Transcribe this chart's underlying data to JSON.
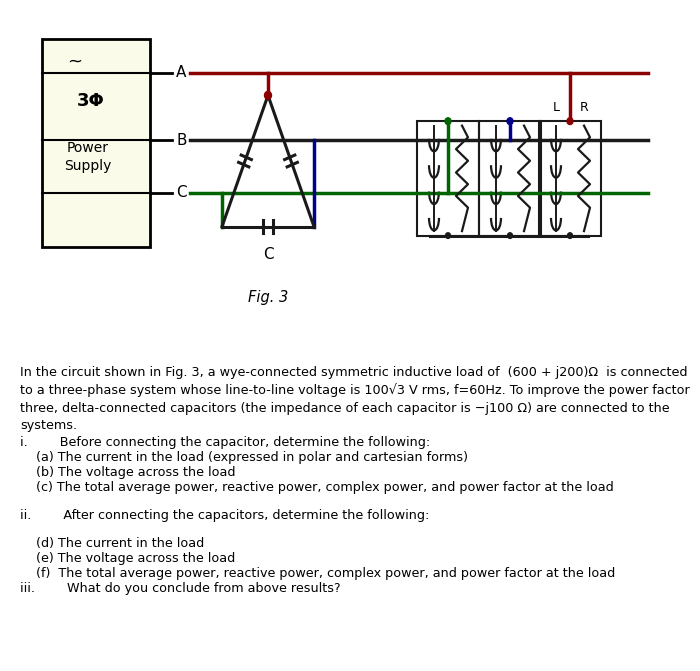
{
  "bg_color_top": "#fafbe8",
  "paragraph_line1": "In the circuit shown in Fig. 3, a wye-connected symmetric inductive load of  (600 + j200)Ω  is connected",
  "paragraph_line2": "to a three-phase system whose line-to-line voltage is 100√3 V rms, f=60Hz. To improve the power factor",
  "paragraph_line3": "three, delta-connected capacitors (the impedance of each capacitor is −j100 Ω) are connected to the",
  "paragraph_line4": "systems.",
  "item_i": "i.        Before connecting the capacitor, determine the following:",
  "item_a": "    (a) The current in the load (expressed in polar and cartesian forms)",
  "item_b": "    (b) The voltage across the load",
  "item_c": "    (c) The total average power, reactive power, complex power, and power factor at the load",
  "item_ii": "ii.        After connecting the capacitors, determine the following:",
  "item_d": "    (d) The current in the load",
  "item_e": "    (e) The voltage across the load",
  "item_f": "    (f)  The total average power, reactive power, complex power, and power factor at the load",
  "item_iii": "iii.        What do you conclude from above results?",
  "fig_caption": "Fig. 3",
  "tilde": "~",
  "ps_bold": "3Φ",
  "ps_normal": "Power\nSupply",
  "phase_A": "A",
  "phase_B": "B",
  "phase_C": "C",
  "cap_label": "C",
  "ind_label": "L",
  "res_label": "R",
  "color_A": "#8B0000",
  "color_B": "#006400",
  "color_C": "#00008B",
  "color_black": "#1a1a1a",
  "color_bg": "#fafbe8"
}
